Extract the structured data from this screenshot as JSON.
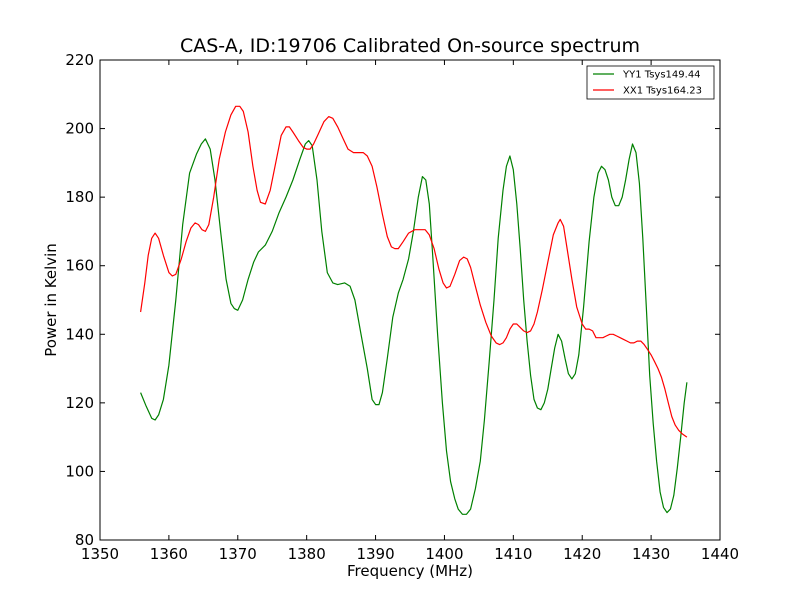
{
  "chart_data": {
    "type": "line",
    "title": "CAS-A, ID:19706 Calibrated On-source spectrum",
    "xlabel": "Frequency (MHz)",
    "ylabel": "Power in Kelvin",
    "xlim": [
      1350,
      1440
    ],
    "ylim": [
      80,
      220
    ],
    "xticks": [
      1350,
      1360,
      1370,
      1380,
      1390,
      1400,
      1410,
      1420,
      1430,
      1440
    ],
    "yticks": [
      80,
      100,
      120,
      140,
      160,
      180,
      200,
      220
    ],
    "xtick_labels": [
      "1350",
      "1360",
      "1370",
      "1380",
      "1390",
      "1400",
      "1410",
      "1420",
      "1430",
      "1440"
    ],
    "ytick_labels": [
      "80",
      "100",
      "120",
      "140",
      "160",
      "180",
      "200",
      "220"
    ],
    "grid": false,
    "legend_position": "top-right",
    "series": [
      {
        "name": "YY1 Tsys149.44",
        "color": "#008000",
        "points": [
          [
            1355.9,
            123
          ],
          [
            1356.7,
            119
          ],
          [
            1357.5,
            115.5
          ],
          [
            1358.0,
            115
          ],
          [
            1358.5,
            116.5
          ],
          [
            1359.2,
            121
          ],
          [
            1360.0,
            131
          ],
          [
            1361.0,
            150
          ],
          [
            1362.0,
            172
          ],
          [
            1363.0,
            187
          ],
          [
            1364.0,
            192.5
          ],
          [
            1364.7,
            195.5
          ],
          [
            1365.3,
            197
          ],
          [
            1366.0,
            194
          ],
          [
            1366.7,
            185
          ],
          [
            1367.5,
            170
          ],
          [
            1368.3,
            156
          ],
          [
            1369.0,
            149
          ],
          [
            1369.5,
            147.5
          ],
          [
            1370.0,
            147
          ],
          [
            1370.7,
            150
          ],
          [
            1371.5,
            156
          ],
          [
            1372.3,
            161
          ],
          [
            1373.0,
            164
          ],
          [
            1374.0,
            166
          ],
          [
            1375.0,
            170
          ],
          [
            1376.0,
            175.5
          ],
          [
            1377.0,
            180
          ],
          [
            1378.0,
            185
          ],
          [
            1379.0,
            191
          ],
          [
            1379.8,
            195.5
          ],
          [
            1380.3,
            196.5
          ],
          [
            1380.8,
            195
          ],
          [
            1381.5,
            185
          ],
          [
            1382.2,
            170
          ],
          [
            1383.0,
            158
          ],
          [
            1383.8,
            155
          ],
          [
            1384.5,
            154.5
          ],
          [
            1385.5,
            155
          ],
          [
            1386.3,
            154
          ],
          [
            1387.0,
            150
          ],
          [
            1387.8,
            141
          ],
          [
            1388.8,
            130
          ],
          [
            1389.5,
            121
          ],
          [
            1390.0,
            119.5
          ],
          [
            1390.5,
            119.5
          ],
          [
            1391.0,
            123
          ],
          [
            1391.7,
            133
          ],
          [
            1392.5,
            145
          ],
          [
            1393.3,
            152
          ],
          [
            1394.0,
            156
          ],
          [
            1394.8,
            162
          ],
          [
            1395.5,
            170
          ],
          [
            1396.2,
            180
          ],
          [
            1396.8,
            186
          ],
          [
            1397.3,
            185
          ],
          [
            1397.8,
            178
          ],
          [
            1398.3,
            163
          ],
          [
            1399.0,
            140
          ],
          [
            1399.7,
            120
          ],
          [
            1400.3,
            106
          ],
          [
            1400.9,
            97
          ],
          [
            1401.5,
            92
          ],
          [
            1402.0,
            89
          ],
          [
            1402.6,
            87.5
          ],
          [
            1403.2,
            87.5
          ],
          [
            1403.8,
            89
          ],
          [
            1404.5,
            95
          ],
          [
            1405.2,
            103
          ],
          [
            1405.8,
            115
          ],
          [
            1406.5,
            132
          ],
          [
            1407.2,
            150
          ],
          [
            1407.8,
            168
          ],
          [
            1408.5,
            182
          ],
          [
            1409.0,
            189
          ],
          [
            1409.5,
            192
          ],
          [
            1410.0,
            188
          ],
          [
            1410.5,
            178
          ],
          [
            1411.0,
            165
          ],
          [
            1411.5,
            150
          ],
          [
            1412.0,
            138
          ],
          [
            1412.5,
            128
          ],
          [
            1413.0,
            121
          ],
          [
            1413.5,
            118.5
          ],
          [
            1414.0,
            118
          ],
          [
            1414.5,
            120
          ],
          [
            1415.0,
            124
          ],
          [
            1415.5,
            130
          ],
          [
            1416.0,
            136
          ],
          [
            1416.5,
            140
          ],
          [
            1417.0,
            138
          ],
          [
            1417.5,
            133
          ],
          [
            1418.0,
            128.5
          ],
          [
            1418.5,
            127
          ],
          [
            1419.0,
            128.5
          ],
          [
            1419.5,
            134
          ],
          [
            1420.2,
            148
          ],
          [
            1421.0,
            167
          ],
          [
            1421.7,
            180
          ],
          [
            1422.3,
            187
          ],
          [
            1422.8,
            189
          ],
          [
            1423.3,
            188
          ],
          [
            1423.8,
            185
          ],
          [
            1424.3,
            180
          ],
          [
            1424.8,
            177.5
          ],
          [
            1425.3,
            177.5
          ],
          [
            1425.8,
            180
          ],
          [
            1426.3,
            185
          ],
          [
            1426.8,
            191
          ],
          [
            1427.3,
            195.5
          ],
          [
            1427.8,
            193
          ],
          [
            1428.3,
            184
          ],
          [
            1428.8,
            168
          ],
          [
            1429.3,
            148
          ],
          [
            1429.8,
            128
          ],
          [
            1430.3,
            114
          ],
          [
            1430.8,
            103
          ],
          [
            1431.3,
            94
          ],
          [
            1431.8,
            89.5
          ],
          [
            1432.3,
            88
          ],
          [
            1432.8,
            89
          ],
          [
            1433.3,
            93
          ],
          [
            1433.8,
            101
          ],
          [
            1434.3,
            110
          ],
          [
            1434.8,
            120
          ],
          [
            1435.2,
            126
          ]
        ]
      },
      {
        "name": "XX1 Tsys164.23",
        "color": "#ff0000",
        "points": [
          [
            1355.9,
            146.5
          ],
          [
            1356.5,
            155
          ],
          [
            1357.0,
            163
          ],
          [
            1357.5,
            168
          ],
          [
            1358.0,
            169.5
          ],
          [
            1358.5,
            168
          ],
          [
            1359.2,
            163
          ],
          [
            1360.0,
            158
          ],
          [
            1360.5,
            157
          ],
          [
            1361.0,
            157.5
          ],
          [
            1361.8,
            162
          ],
          [
            1362.5,
            167
          ],
          [
            1363.2,
            171
          ],
          [
            1363.8,
            172.5
          ],
          [
            1364.3,
            172
          ],
          [
            1364.8,
            170.5
          ],
          [
            1365.3,
            170
          ],
          [
            1365.8,
            172
          ],
          [
            1366.5,
            180
          ],
          [
            1367.3,
            191
          ],
          [
            1368.2,
            199
          ],
          [
            1369.0,
            204
          ],
          [
            1369.7,
            206.5
          ],
          [
            1370.3,
            206.5
          ],
          [
            1370.8,
            205
          ],
          [
            1371.5,
            199
          ],
          [
            1372.2,
            189
          ],
          [
            1372.8,
            182
          ],
          [
            1373.3,
            178.5
          ],
          [
            1374.0,
            178
          ],
          [
            1374.7,
            182
          ],
          [
            1375.5,
            190
          ],
          [
            1376.3,
            198
          ],
          [
            1377.0,
            200.5
          ],
          [
            1377.5,
            200.5
          ],
          [
            1378.0,
            199
          ],
          [
            1378.8,
            196.5
          ],
          [
            1379.5,
            194.5
          ],
          [
            1380.0,
            194
          ],
          [
            1380.5,
            194
          ],
          [
            1381.0,
            195.5
          ],
          [
            1381.7,
            198.5
          ],
          [
            1382.5,
            202
          ],
          [
            1383.2,
            203.5
          ],
          [
            1383.8,
            203
          ],
          [
            1384.5,
            200.5
          ],
          [
            1385.3,
            197
          ],
          [
            1386.0,
            194
          ],
          [
            1386.8,
            193
          ],
          [
            1387.5,
            193
          ],
          [
            1388.2,
            193
          ],
          [
            1388.8,
            192
          ],
          [
            1389.5,
            189
          ],
          [
            1390.2,
            183
          ],
          [
            1391.0,
            175
          ],
          [
            1391.7,
            168.5
          ],
          [
            1392.3,
            165.5
          ],
          [
            1392.8,
            165
          ],
          [
            1393.3,
            165
          ],
          [
            1394.0,
            167
          ],
          [
            1394.8,
            169.5
          ],
          [
            1395.7,
            170.5
          ],
          [
            1396.5,
            170.5
          ],
          [
            1397.2,
            170.5
          ],
          [
            1397.8,
            169
          ],
          [
            1398.5,
            165
          ],
          [
            1399.2,
            159
          ],
          [
            1399.8,
            155
          ],
          [
            1400.3,
            153.5
          ],
          [
            1400.8,
            154
          ],
          [
            1401.5,
            157.5
          ],
          [
            1402.2,
            161.5
          ],
          [
            1402.8,
            162.5
          ],
          [
            1403.3,
            162
          ],
          [
            1403.8,
            159.5
          ],
          [
            1404.5,
            154
          ],
          [
            1405.2,
            148.5
          ],
          [
            1406.0,
            143.5
          ],
          [
            1406.8,
            139.5
          ],
          [
            1407.5,
            137.5
          ],
          [
            1408.0,
            137
          ],
          [
            1408.5,
            137.5
          ],
          [
            1409.0,
            139
          ],
          [
            1409.5,
            141.5
          ],
          [
            1410.0,
            143
          ],
          [
            1410.5,
            143
          ],
          [
            1411.0,
            142
          ],
          [
            1411.5,
            141
          ],
          [
            1412.0,
            140.5
          ],
          [
            1412.5,
            141
          ],
          [
            1413.0,
            143
          ],
          [
            1413.5,
            146.5
          ],
          [
            1414.2,
            153
          ],
          [
            1415.0,
            161
          ],
          [
            1415.8,
            169
          ],
          [
            1416.5,
            172.5
          ],
          [
            1416.8,
            173.5
          ],
          [
            1417.3,
            171.5
          ],
          [
            1417.8,
            165
          ],
          [
            1418.5,
            156
          ],
          [
            1419.2,
            148
          ],
          [
            1420.0,
            143
          ],
          [
            1420.5,
            141.5
          ],
          [
            1421.0,
            141.5
          ],
          [
            1421.5,
            141
          ],
          [
            1422.0,
            139
          ],
          [
            1422.5,
            139
          ],
          [
            1423.0,
            139
          ],
          [
            1423.5,
            139.5
          ],
          [
            1424.0,
            140
          ],
          [
            1424.5,
            140
          ],
          [
            1425.0,
            139.5
          ],
          [
            1425.5,
            139
          ],
          [
            1426.0,
            138.5
          ],
          [
            1426.5,
            138
          ],
          [
            1427.0,
            137.5
          ],
          [
            1427.5,
            137.5
          ],
          [
            1428.0,
            138
          ],
          [
            1428.5,
            138
          ],
          [
            1429.0,
            137
          ],
          [
            1429.5,
            135.5
          ],
          [
            1430.0,
            134
          ],
          [
            1430.5,
            132
          ],
          [
            1431.0,
            130
          ],
          [
            1431.5,
            127.5
          ],
          [
            1432.0,
            124
          ],
          [
            1432.5,
            120
          ],
          [
            1433.0,
            116
          ],
          [
            1433.5,
            113.5
          ],
          [
            1434.0,
            112
          ],
          [
            1434.5,
            111
          ],
          [
            1435.2,
            110
          ]
        ]
      }
    ]
  }
}
